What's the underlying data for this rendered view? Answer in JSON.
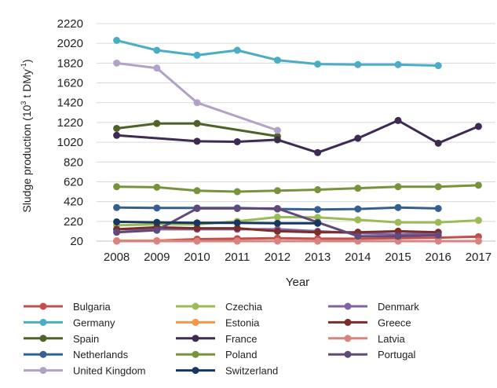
{
  "chart_data": {
    "type": "line",
    "title": "",
    "xlabel": "Year",
    "ylabel_parts": {
      "base": "Sludge production (10",
      "sup1": "3",
      "mid": " t DMy",
      "sup2": "-1",
      "end": ")"
    },
    "x": [
      "2008",
      "2009",
      "2010",
      "2011",
      "2012",
      "2013",
      "2014",
      "2015",
      "2016",
      "2017"
    ],
    "yticks": [
      "20",
      "220",
      "420",
      "620",
      "820",
      "1020",
      "1220",
      "1420",
      "1620",
      "1820",
      "2020",
      "2220"
    ],
    "ylim": [
      20,
      2220
    ],
    "grid": "horizontal",
    "legend_position": "bottom",
    "series": [
      {
        "name": "Bulgaria",
        "color": "#c0504d",
        "values": [
          20,
          25,
          40,
          45,
          50,
          45,
          45,
          50,
          55,
          65
        ]
      },
      {
        "name": "Czechia",
        "color": "#9bbb59",
        "values": [
          180,
          190,
          190,
          220,
          263,
          260,
          235,
          210,
          210,
          230
        ]
      },
      {
        "name": "Denmark",
        "color": "#8064a2",
        "values": [
          140,
          140,
          140,
          140,
          140,
          120,
          100,
          90,
          100,
          null
        ]
      },
      {
        "name": "Germany",
        "color": "#4bacc6",
        "values": [
          2050,
          1950,
          1900,
          1950,
          1850,
          1810,
          1805,
          1805,
          1795,
          null
        ]
      },
      {
        "name": "Estonia",
        "color": "#f79646",
        "values": [
          25,
          25,
          20,
          20,
          20,
          20,
          20,
          20,
          20,
          20
        ]
      },
      {
        "name": "Greece",
        "color": "#7a2d2a",
        "values": [
          140,
          160,
          150,
          150,
          120,
          110,
          110,
          120,
          110,
          null
        ]
      },
      {
        "name": "Spain",
        "color": "#4f6228",
        "values": [
          1160,
          1210,
          1210,
          null,
          1080,
          null,
          null,
          null,
          null,
          null
        ]
      },
      {
        "name": "France",
        "color": "#3e2a52",
        "values": [
          1090,
          null,
          1030,
          1025,
          1045,
          915,
          1060,
          1240,
          1010,
          1180
        ]
      },
      {
        "name": "Latvia",
        "color": "#d98380",
        "values": [
          20,
          20,
          20,
          20,
          20,
          20,
          20,
          20,
          20,
          20
        ]
      },
      {
        "name": "Netherlands",
        "color": "#376092",
        "values": [
          360,
          355,
          355,
          355,
          345,
          340,
          345,
          360,
          350,
          null
        ]
      },
      {
        "name": "Poland",
        "color": "#77933c",
        "values": [
          570,
          565,
          530,
          520,
          530,
          540,
          555,
          570,
          570,
          585
        ]
      },
      {
        "name": "Portugal",
        "color": "#604a7b",
        "values": [
          110,
          130,
          350,
          350,
          350,
          210,
          70,
          70,
          80,
          null
        ]
      },
      {
        "name": "United Kingdom",
        "color": "#b3a2c7",
        "values": [
          1820,
          1770,
          1420,
          null,
          1140,
          null,
          null,
          null,
          null,
          null
        ]
      },
      {
        "name": "Switzerland",
        "color": "#17375e",
        "values": [
          215,
          210,
          205,
          205,
          200,
          200,
          null,
          null,
          null,
          null
        ]
      }
    ]
  }
}
